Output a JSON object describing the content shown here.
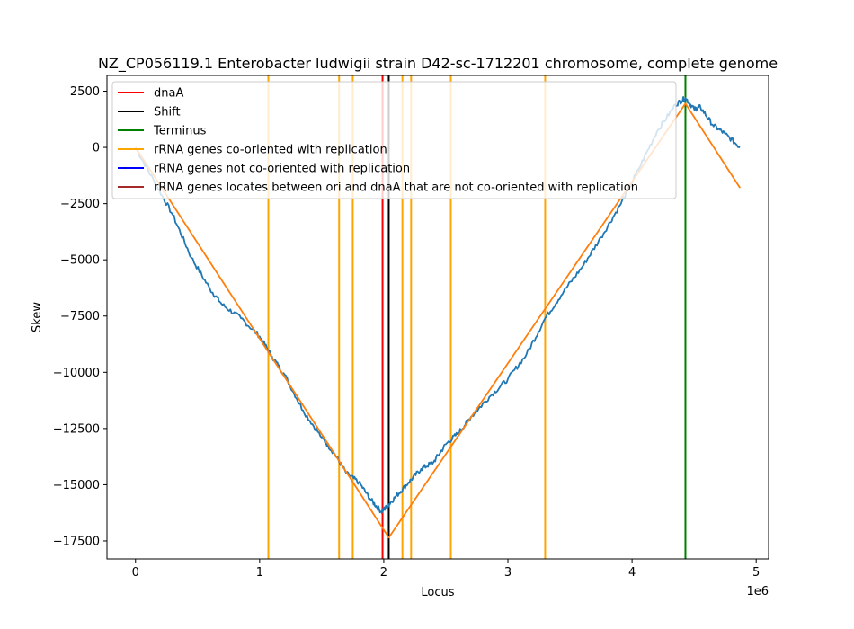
{
  "chart_data": {
    "type": "line",
    "title": "NZ_CP056119.1 Enterobacter ludwigii strain D42-sc-1712201 chromosome, complete genome",
    "xlabel": "Locus",
    "ylabel": "Skew",
    "x_offset_label": "1e6",
    "x_scale_factor": 1000000,
    "xlim": [
      -230000,
      5100000
    ],
    "ylim": [
      -18300,
      3200
    ],
    "xticks": [
      0,
      1000000,
      2000000,
      3000000,
      4000000,
      5000000
    ],
    "xtick_labels": [
      "0",
      "1",
      "2",
      "3",
      "4",
      "5"
    ],
    "yticks": [
      2500,
      0,
      -2500,
      -5000,
      -7500,
      -10000,
      -12500,
      -15000,
      -17500
    ],
    "ytick_labels": [
      "2500",
      "0",
      "−2500",
      "−5000",
      "−7500",
      "−10000",
      "−12500",
      "−15000",
      "−17500"
    ],
    "grid": false,
    "legend_position": "top-left",
    "legend": [
      {
        "label": "dnaA",
        "color": "#ff0000"
      },
      {
        "label": "Shift",
        "color": "#000000"
      },
      {
        "label": "Terminus",
        "color": "#008000"
      },
      {
        "label": "rRNA genes co-oriented with replication",
        "color": "#ffa500"
      },
      {
        "label": "rRNA genes not co-oriented with replication",
        "color": "#0000ff"
      },
      {
        "label": "rRNA genes locates between ori and dnaA that are not co-oriented with replication",
        "color": "#a52a2a"
      }
    ],
    "series": [
      {
        "color": "#1f77b4",
        "x": [
          0,
          150000,
          300000,
          450000,
          600000,
          700000,
          850000,
          1000000,
          1100000,
          1200000,
          1350000,
          1500000,
          1600000,
          1700000,
          1800000,
          1900000,
          1980000,
          2020000,
          2100000,
          2200000,
          2300000,
          2400000,
          2500000,
          2600000,
          2700000,
          2850000,
          3000000,
          3150000,
          3300000,
          3450000,
          3600000,
          3750000,
          3900000,
          4050000,
          4200000,
          4350000,
          4430000,
          4500000,
          4550000,
          4650000,
          4750000,
          4870000
        ],
        "y": [
          0,
          -1500,
          -3000,
          -4900,
          -6300,
          -7000,
          -7600,
          -8400,
          -9300,
          -10100,
          -11700,
          -12900,
          -13600,
          -14500,
          -14900,
          -15700,
          -16200,
          -16000,
          -15500,
          -14900,
          -14300,
          -14000,
          -13200,
          -12700,
          -12000,
          -11100,
          -10300,
          -9200,
          -7600,
          -6400,
          -5300,
          -4000,
          -2600,
          -1000,
          700,
          1900,
          2200,
          1700,
          1800,
          1000,
          600,
          0
        ]
      },
      {
        "color": "#ff7f0e",
        "x": [
          0,
          2040000,
          4430000,
          4870000
        ],
        "y": [
          0,
          -17350,
          1950,
          -1800
        ]
      }
    ],
    "vlines": [
      {
        "x": 1070000,
        "color": "#ffa500"
      },
      {
        "x": 1640000,
        "color": "#ffa500"
      },
      {
        "x": 1750000,
        "color": "#ffa500"
      },
      {
        "x": 2150000,
        "color": "#ffa500"
      },
      {
        "x": 2220000,
        "color": "#ffa500"
      },
      {
        "x": 2540000,
        "color": "#ffa500"
      },
      {
        "x": 3300000,
        "color": "#ffa500"
      },
      {
        "x": 1990000,
        "color": "#ff0000"
      },
      {
        "x": 2040000,
        "color": "#000000"
      },
      {
        "x": 4430000,
        "color": "#008000"
      }
    ]
  }
}
